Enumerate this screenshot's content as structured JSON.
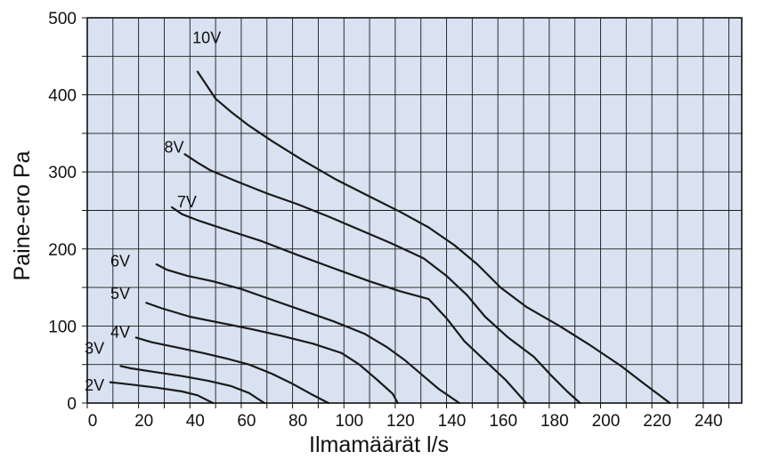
{
  "chart_data": {
    "type": "line",
    "title": "",
    "xlabel": "Ilmamäärät l/s",
    "ylabel": "Paine-ero Pa",
    "xlim": [
      0,
      255
    ],
    "ylim": [
      0,
      500
    ],
    "x_ticks": [
      0,
      20,
      40,
      60,
      80,
      100,
      120,
      140,
      160,
      180,
      200,
      220,
      240
    ],
    "y_ticks": [
      0,
      100,
      200,
      300,
      400,
      500
    ],
    "grid": true,
    "legend": "none",
    "colors": {
      "plot_bg": "#d9e2f1",
      "grid": "#1a1a1a",
      "line": "#1a1a1a"
    },
    "series": [
      {
        "name": "10V",
        "label_at": [
          41,
          467
        ],
        "points": [
          [
            43,
            430
          ],
          [
            46,
            415
          ],
          [
            50,
            395
          ],
          [
            56,
            378
          ],
          [
            63,
            360
          ],
          [
            72,
            340
          ],
          [
            84,
            315
          ],
          [
            97,
            290
          ],
          [
            110,
            268
          ],
          [
            122,
            248
          ],
          [
            133,
            228
          ],
          [
            143,
            205
          ],
          [
            152,
            180
          ],
          [
            161,
            150
          ],
          [
            171,
            125
          ],
          [
            184,
            100
          ],
          [
            196,
            75
          ],
          [
            208,
            48
          ],
          [
            217,
            25
          ],
          [
            227,
            0
          ]
        ]
      },
      {
        "name": "8V",
        "label_at": [
          30,
          325
        ],
        "points": [
          [
            38,
            323
          ],
          [
            43,
            312
          ],
          [
            48,
            302
          ],
          [
            58,
            288
          ],
          [
            70,
            272
          ],
          [
            82,
            258
          ],
          [
            94,
            242
          ],
          [
            106,
            225
          ],
          [
            118,
            208
          ],
          [
            131,
            188
          ],
          [
            140,
            165
          ],
          [
            148,
            140
          ],
          [
            155,
            112
          ],
          [
            164,
            85
          ],
          [
            174,
            60
          ],
          [
            181,
            35
          ],
          [
            187,
            15
          ],
          [
            192,
            0
          ]
        ]
      },
      {
        "name": "7V",
        "label_at": [
          35,
          254
        ],
        "points": [
          [
            33,
            254
          ],
          [
            37,
            245
          ],
          [
            44,
            236
          ],
          [
            55,
            224
          ],
          [
            68,
            210
          ],
          [
            82,
            192
          ],
          [
            96,
            175
          ],
          [
            110,
            158
          ],
          [
            122,
            145
          ],
          [
            133,
            135
          ],
          [
            140,
            110
          ],
          [
            147,
            80
          ],
          [
            155,
            55
          ],
          [
            163,
            30
          ],
          [
            167,
            15
          ],
          [
            171,
            0
          ]
        ]
      },
      {
        "name": "6V",
        "label_at": [
          9,
          177
        ],
        "points": [
          [
            27,
            180
          ],
          [
            31,
            173
          ],
          [
            39,
            165
          ],
          [
            49,
            158
          ],
          [
            60,
            148
          ],
          [
            72,
            134
          ],
          [
            84,
            120
          ],
          [
            96,
            106
          ],
          [
            108,
            90
          ],
          [
            117,
            72
          ],
          [
            124,
            55
          ],
          [
            131,
            35
          ],
          [
            137,
            18
          ],
          [
            145,
            0
          ]
        ]
      },
      {
        "name": "5V",
        "label_at": [
          9,
          135
        ],
        "points": [
          [
            23,
            130
          ],
          [
            29,
            123
          ],
          [
            40,
            112
          ],
          [
            52,
            104
          ],
          [
            64,
            96
          ],
          [
            76,
            87
          ],
          [
            88,
            77
          ],
          [
            99,
            65
          ],
          [
            106,
            50
          ],
          [
            113,
            30
          ],
          [
            119,
            12
          ],
          [
            121,
            0
          ]
        ]
      },
      {
        "name": "4V",
        "label_at": [
          9,
          85
        ],
        "points": [
          [
            19,
            85
          ],
          [
            25,
            79
          ],
          [
            35,
            72
          ],
          [
            45,
            65
          ],
          [
            54,
            58
          ],
          [
            63,
            50
          ],
          [
            72,
            38
          ],
          [
            80,
            25
          ],
          [
            87,
            12
          ],
          [
            94,
            0
          ]
        ]
      },
      {
        "name": "3V",
        "label_at": [
          -1,
          64
        ],
        "points": [
          [
            13,
            48
          ],
          [
            17,
            45
          ],
          [
            27,
            40
          ],
          [
            37,
            35
          ],
          [
            47,
            29
          ],
          [
            56,
            22
          ],
          [
            63,
            13
          ],
          [
            69,
            0
          ]
        ]
      },
      {
        "name": "2V",
        "label_at": [
          -1,
          16
        ],
        "points": [
          [
            9,
            27
          ],
          [
            17,
            24
          ],
          [
            27,
            20
          ],
          [
            37,
            15
          ],
          [
            43,
            10
          ],
          [
            46,
            5
          ],
          [
            49,
            0
          ]
        ]
      }
    ]
  }
}
